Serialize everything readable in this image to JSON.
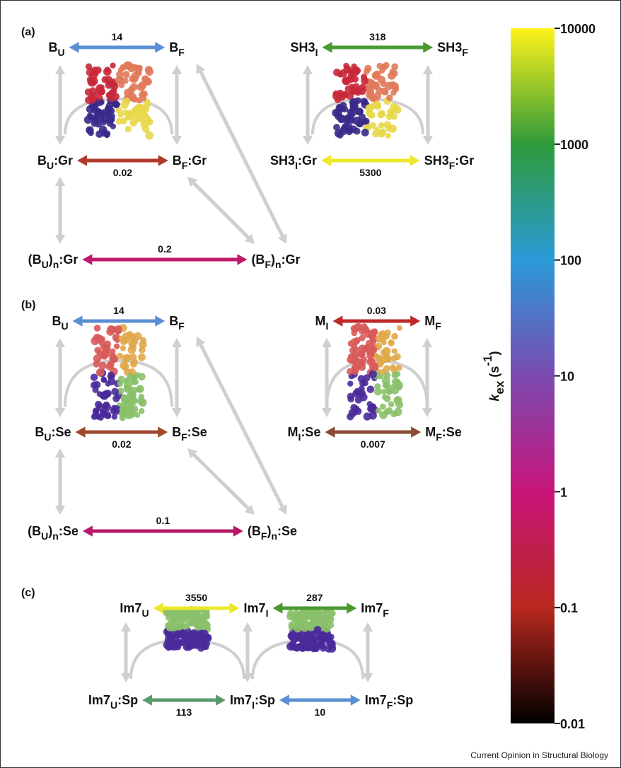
{
  "panels": [
    {
      "label": "(a)"
    },
    {
      "label": "(b)"
    },
    {
      "label": "(c)"
    }
  ],
  "nodes": [
    {
      "label": [
        "B",
        "U"
      ]
    },
    {
      "label": [
        "B",
        "F"
      ]
    },
    {
      "label": [
        "SH3",
        "I"
      ]
    },
    {
      "label": [
        "SH3",
        "F"
      ]
    },
    {
      "label": [
        "B",
        "U",
        ":Gr"
      ]
    },
    {
      "label": [
        "B",
        "F",
        ":Gr"
      ]
    },
    {
      "label": [
        "SH3",
        "I",
        ":Gr"
      ]
    },
    {
      "label": [
        "SH3",
        "F",
        ":Gr"
      ]
    },
    {
      "label": [
        "(B",
        "U",
        ")",
        "n",
        ":Gr"
      ]
    },
    {
      "label": [
        "(B",
        "F",
        ")",
        "n",
        ":Gr"
      ]
    },
    {
      "label": [
        "B",
        "U"
      ]
    },
    {
      "label": [
        "B",
        "F"
      ]
    },
    {
      "label": [
        "M",
        "I"
      ]
    },
    {
      "label": [
        "M",
        "F"
      ]
    },
    {
      "label": [
        "B",
        "U",
        ":Se"
      ]
    },
    {
      "label": [
        "B",
        "F",
        ":Se"
      ]
    },
    {
      "label": [
        "M",
        "I",
        ":Se"
      ]
    },
    {
      "label": [
        "M",
        "F",
        ":Se"
      ]
    },
    {
      "label": [
        "(B",
        "U",
        ")",
        "n",
        ":Se"
      ]
    },
    {
      "label": [
        "(B",
        "F",
        ")",
        "n",
        ":Se"
      ]
    },
    {
      "label": [
        "Im7",
        "U"
      ]
    },
    {
      "label": [
        "Im7",
        "I"
      ]
    },
    {
      "label": [
        "Im7",
        "F"
      ]
    },
    {
      "label": [
        "Im7",
        "U",
        ":Sp"
      ]
    },
    {
      "label": [
        "Im7",
        "I",
        ":Sp"
      ]
    },
    {
      "label": [
        "Im7",
        "F",
        ":Sp"
      ]
    }
  ],
  "edges": [
    {
      "from": 0,
      "to": 1,
      "rate": 14,
      "color": "#5b8fd4"
    },
    {
      "from": 2,
      "to": 3,
      "rate": 318,
      "color": "#4a9a30"
    },
    {
      "from": 4,
      "to": 5,
      "rate": 0.02,
      "color": "#b03a2a"
    },
    {
      "from": 6,
      "to": 7,
      "rate": 5300,
      "color": "#ece82a"
    },
    {
      "from": 8,
      "to": 9,
      "rate": 0.2,
      "color": "#c0186a"
    },
    {
      "from": 10,
      "to": 11,
      "rate": 14,
      "color": "#5b8fd4"
    },
    {
      "from": 12,
      "to": 13,
      "rate": 0.03,
      "color": "#c0282a"
    },
    {
      "from": 14,
      "to": 15,
      "rate": 0.02,
      "color": "#a0482e"
    },
    {
      "from": 16,
      "to": 17,
      "rate": 0.007,
      "color": "#8a4a34"
    },
    {
      "from": 18,
      "to": 19,
      "rate": 0.1,
      "color": "#b8186a"
    },
    {
      "from": 20,
      "to": 21,
      "rate": 3550,
      "color": "#ece82a"
    },
    {
      "from": 21,
      "to": 22,
      "rate": 287,
      "color": "#4a9a30"
    },
    {
      "from": 23,
      "to": 24,
      "rate": 113,
      "color": "#5a9a6a"
    },
    {
      "from": 24,
      "to": 25,
      "rate": 10,
      "color": "#5b8fd4"
    }
  ],
  "colorbar": {
    "label": [
      {
        "t": "k"
      },
      {
        "sub": "ex"
      },
      {
        "t": " (s"
      },
      {
        "sup": "-1"
      },
      {
        "t": ")"
      }
    ],
    "scale": "log",
    "lim": [
      0.01,
      10000
    ],
    "ticks": [
      10000,
      1000,
      100,
      10,
      1,
      0.1,
      0.01
    ],
    "colors": [
      "#fff31a",
      "#2e9a3a",
      "#2a9ad8",
      "#7a4ab0",
      "#c8157a",
      "#b8281e",
      "#000000"
    ]
  },
  "footer": "Current Opinion in Structural Biology"
}
